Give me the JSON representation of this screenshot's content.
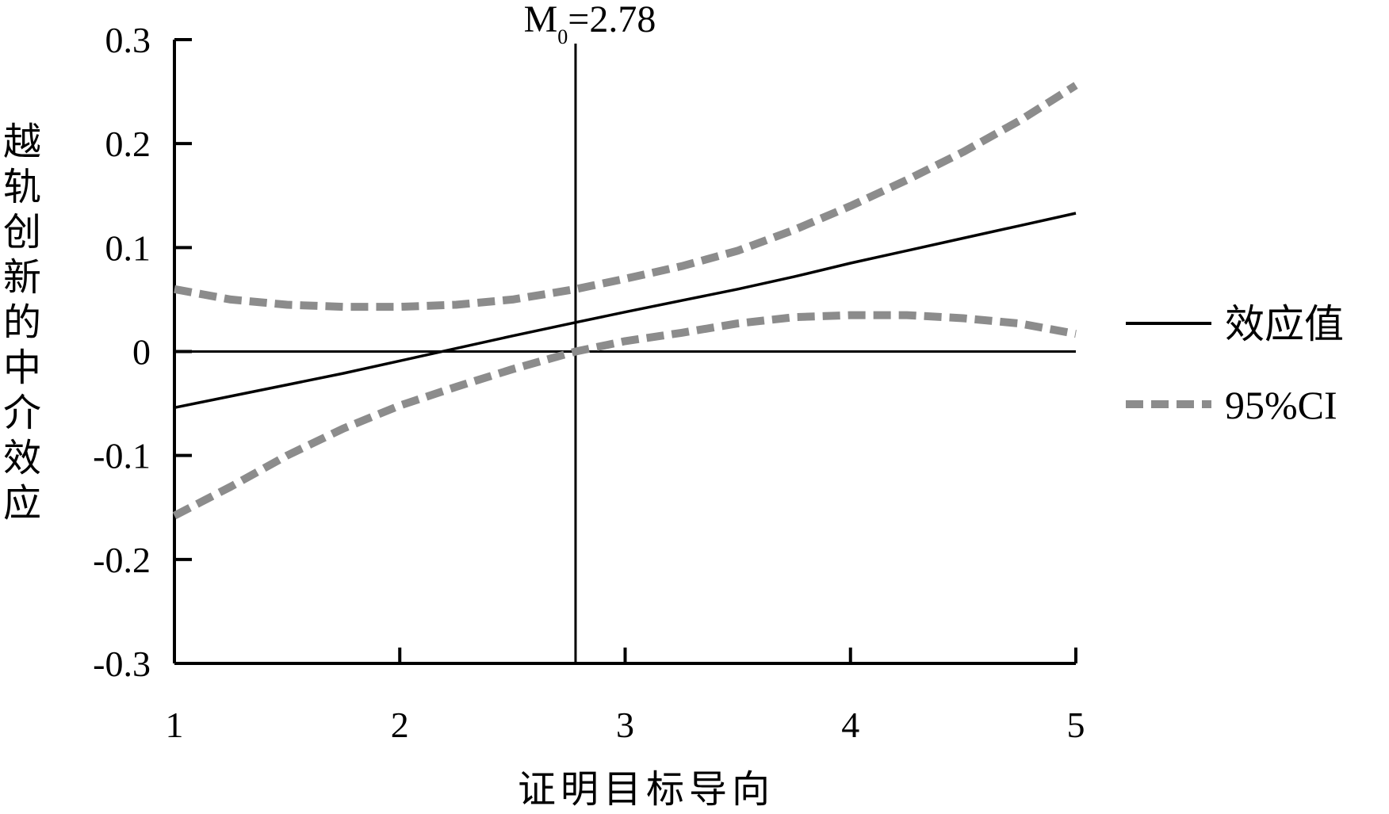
{
  "chart_data": {
    "type": "line",
    "title": "",
    "xlabel": "证明目标导向",
    "ylabel": "越轨创新的中介效应",
    "xlim": [
      1,
      5
    ],
    "ylim": [
      -0.3,
      0.3
    ],
    "x_ticks": [
      "1",
      "2",
      "3",
      "4",
      "5"
    ],
    "y_ticks": [
      "0.3",
      "0.2",
      "0.1",
      "0",
      "-0.1",
      "-0.2",
      "-0.3"
    ],
    "grid": false,
    "legend_position": "right",
    "reference_line": {
      "x": 2.78,
      "label_main": "M",
      "label_sub": "0",
      "label_value": "=2.78"
    },
    "x": [
      1.0,
      1.25,
      1.5,
      1.75,
      2.0,
      2.25,
      2.5,
      2.78,
      3.0,
      3.25,
      3.5,
      3.75,
      4.0,
      4.25,
      4.5,
      4.75,
      5.0
    ],
    "series": [
      {
        "name": "效应值",
        "style": "solid",
        "color": "#000000",
        "values": [
          -0.054,
          -0.043,
          -0.032,
          -0.021,
          -0.009,
          0.003,
          0.015,
          0.028,
          0.038,
          0.049,
          0.06,
          0.072,
          0.085,
          0.097,
          0.109,
          0.121,
          0.133
        ]
      },
      {
        "name": "95%CI",
        "style": "dashed",
        "color": "#8c8c8c",
        "values": [
          0.06,
          0.05,
          0.045,
          0.043,
          0.043,
          0.045,
          0.05,
          0.06,
          0.07,
          0.082,
          0.097,
          0.117,
          0.14,
          0.165,
          0.192,
          0.222,
          0.256
        ]
      },
      {
        "name": "",
        "style": "dashed",
        "color": "#8c8c8c",
        "values": [
          -0.158,
          -0.13,
          -0.1,
          -0.074,
          -0.052,
          -0.034,
          -0.017,
          0.0,
          0.01,
          0.018,
          0.027,
          0.033,
          0.035,
          0.035,
          0.032,
          0.027,
          0.017
        ]
      }
    ]
  }
}
